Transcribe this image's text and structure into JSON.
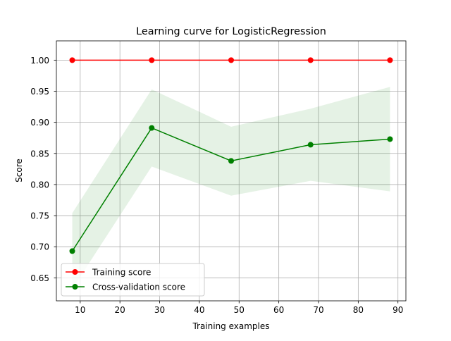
{
  "chart_data": {
    "type": "line",
    "title": "Learning curve for LogisticRegression",
    "xlabel": "Training examples",
    "ylabel": "Score",
    "xlim": [
      4.0,
      92.0
    ],
    "ylim": [
      0.613,
      1.031
    ],
    "xticks": [
      10,
      20,
      30,
      40,
      50,
      60,
      70,
      80,
      90
    ],
    "yticks": [
      0.65,
      0.7,
      0.75,
      0.8,
      0.85,
      0.9,
      0.95,
      1.0
    ],
    "grid": true,
    "legend_position": "lower-left",
    "x": [
      8,
      28,
      48,
      68,
      88
    ],
    "series": [
      {
        "name": "Training score",
        "color": "#ff0000",
        "values": [
          1.0,
          1.0,
          1.0,
          1.0,
          1.0
        ],
        "band_lower": [
          1.0,
          1.0,
          1.0,
          1.0,
          1.0
        ],
        "band_upper": [
          1.0,
          1.0,
          1.0,
          1.0,
          1.0
        ],
        "band_color": "#ff0000"
      },
      {
        "name": "Cross-validation score",
        "color": "#008000",
        "values": [
          0.693,
          0.891,
          0.838,
          0.864,
          0.873
        ],
        "band_lower": [
          0.632,
          0.829,
          0.782,
          0.806,
          0.789
        ],
        "band_upper": [
          0.754,
          0.953,
          0.893,
          0.922,
          0.957
        ],
        "band_color": "#008000"
      }
    ]
  }
}
